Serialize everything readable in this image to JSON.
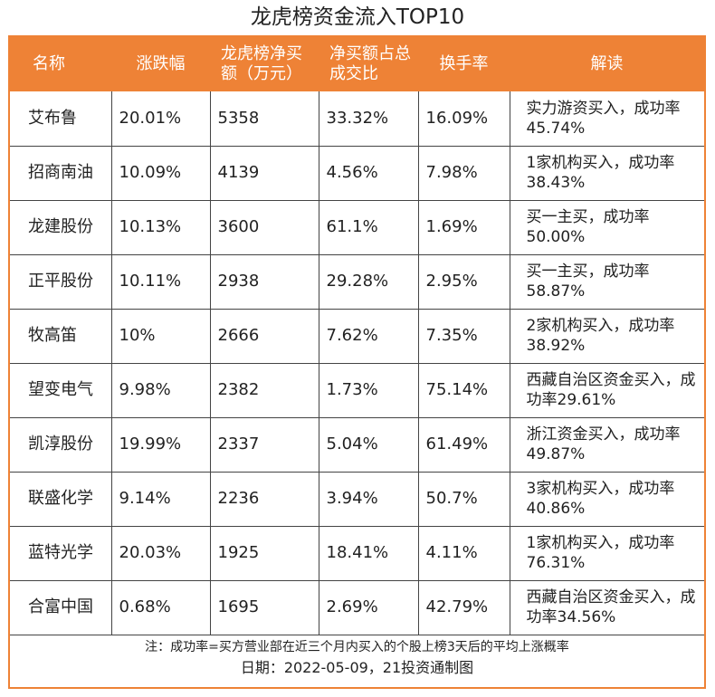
{
  "title": "龙虎榜资金流入TOP10",
  "header": {
    "name": "名称",
    "change": "涨跌幅",
    "net_buy": "龙虎榜净买额（万元）",
    "ratio": "净买额占总成交比",
    "turnover": "换手率",
    "interpretation": "解读"
  },
  "rows": [
    {
      "name": "艾布鲁",
      "change": "20.01%",
      "net_buy": "5358",
      "ratio": "33.32%",
      "turnover": "16.09%",
      "interpretation": "实力游资买入，成功率45.74%"
    },
    {
      "name": "招商南油",
      "change": "10.09%",
      "net_buy": "4139",
      "ratio": "4.56%",
      "turnover": "7.98%",
      "interpretation": "1家机构买入，成功率38.43%"
    },
    {
      "name": "龙建股份",
      "change": "10.13%",
      "net_buy": "3600",
      "ratio": "61.1%",
      "turnover": "1.69%",
      "interpretation": "买一主买，成功率50.00%"
    },
    {
      "name": "正平股份",
      "change": "10.11%",
      "net_buy": "2938",
      "ratio": "29.28%",
      "turnover": "2.95%",
      "interpretation": "买一主买，成功率58.87%"
    },
    {
      "name": "牧高笛",
      "change": "10%",
      "net_buy": "2666",
      "ratio": "7.62%",
      "turnover": "7.35%",
      "interpretation": "2家机构买入，成功率38.92%"
    },
    {
      "name": "望变电气",
      "change": "9.98%",
      "net_buy": "2382",
      "ratio": "1.73%",
      "turnover": "75.14%",
      "interpretation": "西藏自治区资金买入，成功率29.61%"
    },
    {
      "name": "凯淳股份",
      "change": "19.99%",
      "net_buy": "2337",
      "ratio": "5.04%",
      "turnover": "61.49%",
      "interpretation": "浙江资金买入，成功率49.87%"
    },
    {
      "name": "联盛化学",
      "change": "9.14%",
      "net_buy": "2236",
      "ratio": "3.94%",
      "turnover": "50.7%",
      "interpretation": "3家机构买入，成功率40.86%"
    },
    {
      "name": "蓝特光学",
      "change": "20.03%",
      "net_buy": "1925",
      "ratio": "18.41%",
      "turnover": "4.11%",
      "interpretation": "1家机构买入，成功率76.31%"
    },
    {
      "name": "合富中国",
      "change": "0.68%",
      "net_buy": "1695",
      "ratio": "2.69%",
      "turnover": "42.79%",
      "interpretation": "西藏自治区资金买入，成功率34.56%"
    }
  ],
  "footer": {
    "note": "注：成功率=买方营业部在近三个月内买入的个股上榜3天后的平均上涨概率",
    "date": "日期：2022-05-09，21投资通制图"
  },
  "colors": {
    "accent": "#ee8236"
  }
}
